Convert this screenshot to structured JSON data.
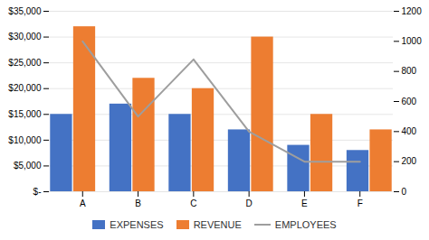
{
  "chart_data": {
    "type": "bar",
    "categories": [
      "A",
      "B",
      "C",
      "D",
      "E",
      "F"
    ],
    "series": [
      {
        "name": "EXPENSES",
        "color": "#4472C4",
        "values": [
          15000,
          17000,
          15000,
          12000,
          9000,
          8000
        ]
      },
      {
        "name": "REVENUE",
        "color": "#ED7D31",
        "values": [
          32000,
          22000,
          20000,
          30000,
          15000,
          12000
        ]
      },
      {
        "name": "EMPLOYEES",
        "type": "line",
        "axis": "y2",
        "color": "#9E9E9E",
        "values": [
          1000,
          500,
          880,
          400,
          200,
          200
        ]
      }
    ],
    "ylim": [
      0,
      35000
    ],
    "yticks": [
      {
        "value": 0,
        "label": "$-"
      },
      {
        "value": 5000,
        "label": "$5,000"
      },
      {
        "value": 10000,
        "label": "$10,000"
      },
      {
        "value": 15000,
        "label": "$15,000"
      },
      {
        "value": 20000,
        "label": "$20,000"
      },
      {
        "value": 25000,
        "label": "$25,000"
      },
      {
        "value": 30000,
        "label": "$30,000"
      },
      {
        "value": 35000,
        "label": "$35,000"
      }
    ],
    "y2lim": [
      0,
      1200
    ],
    "y2ticks": [
      0,
      200,
      400,
      600,
      800,
      1000,
      1200
    ],
    "grid": true,
    "legend": "bottom"
  }
}
